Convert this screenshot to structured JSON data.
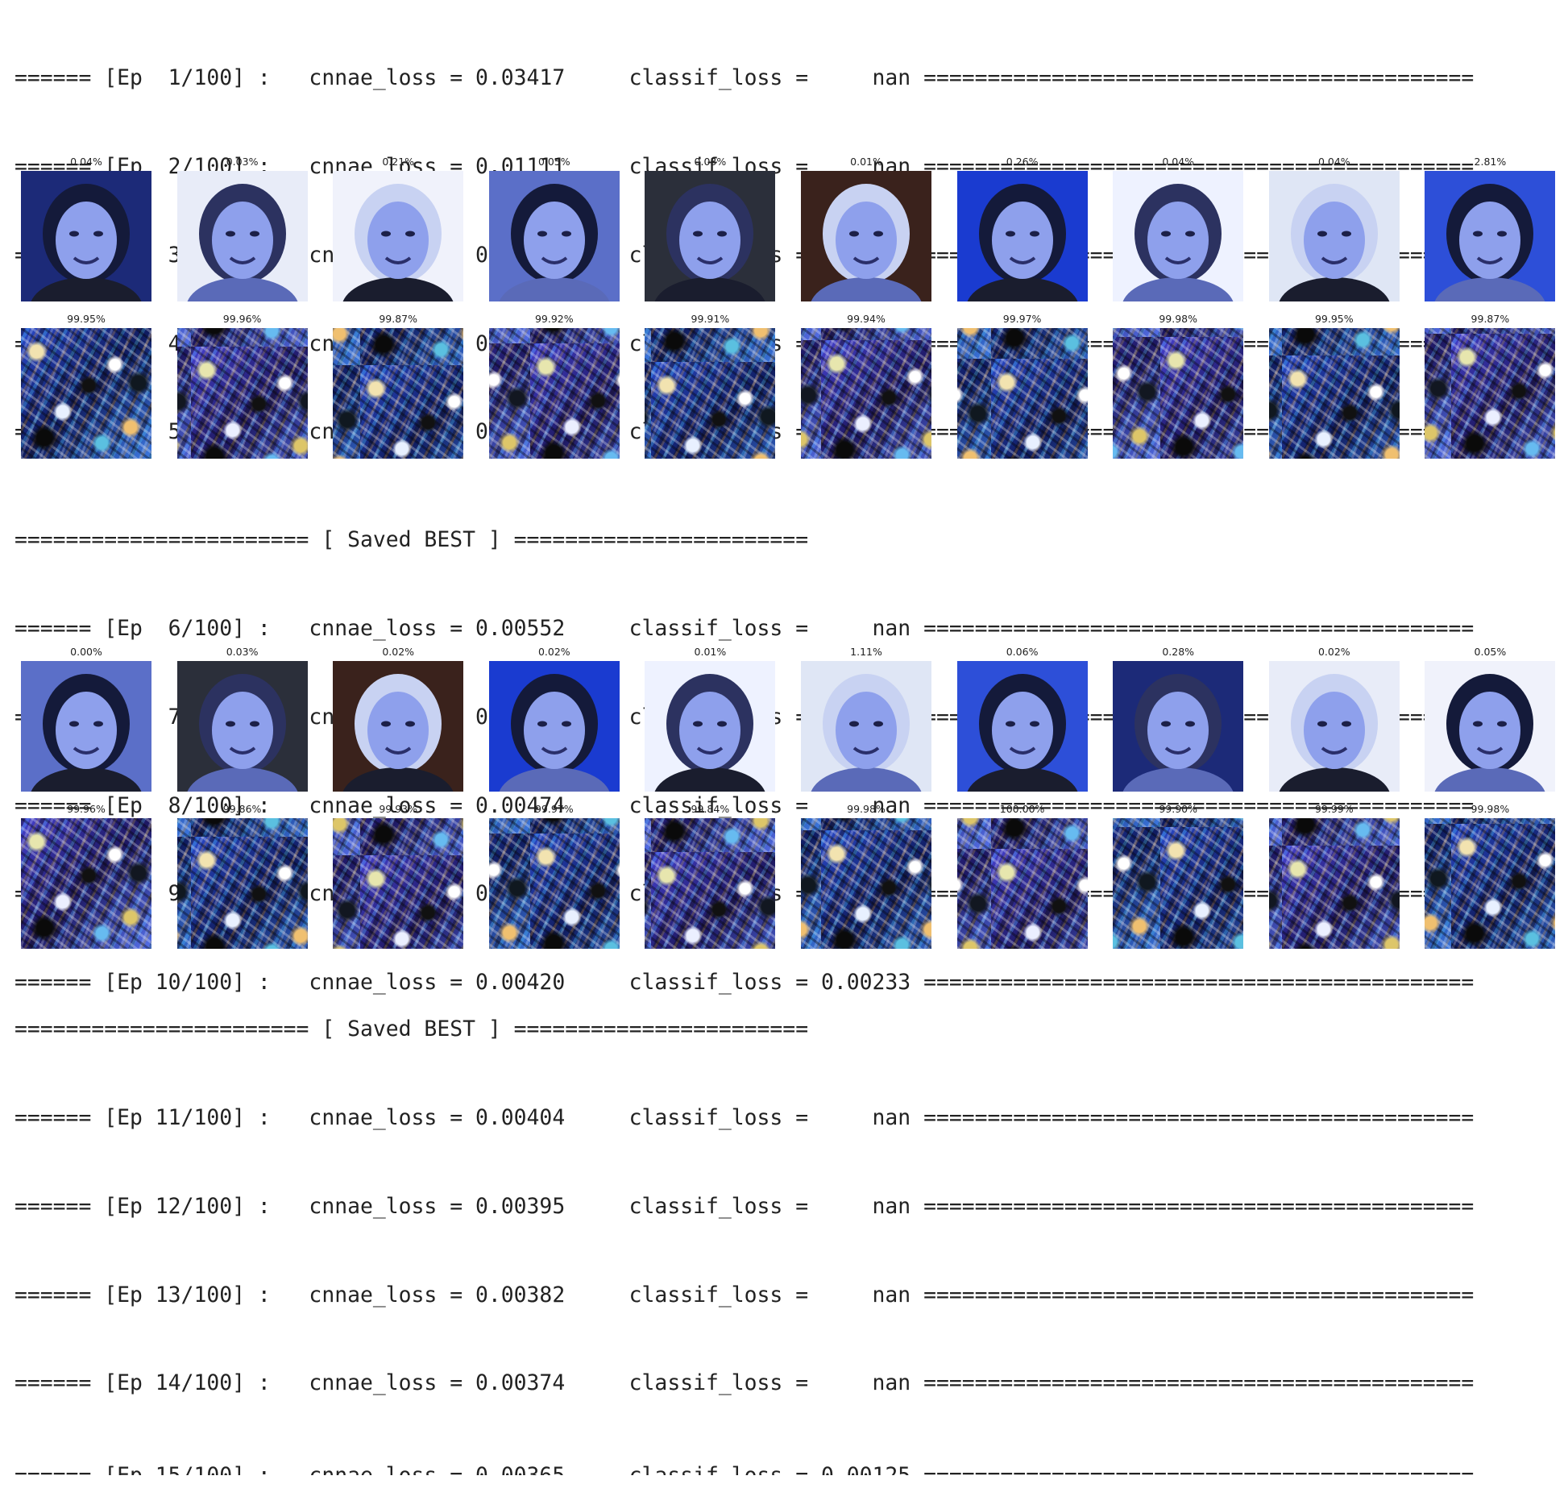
{
  "log_sections": [
    {
      "lines": [
        "====== [Ep  1/100] :   cnnae_loss = 0.03417     classif_loss =     nan ===========================================",
        "====== [Ep  2/100] :   cnnae_loss = 0.01111     classif_loss =     nan ===========================================",
        "====== [Ep  3/100] :   cnnae_loss = 0.00790     classif_loss =     nan ===========================================",
        "====== [Ep  4/100] :   cnnae_loss = 0.00672     classif_loss =     nan ===========================================",
        "====== [Ep  5/100] :   cnnae_loss = 0.00599     classif_loss = 0.04862 ==========================================="
      ]
    },
    {
      "lines": [
        "======================= [ Saved BEST ] =======================",
        "====== [Ep  6/100] :   cnnae_loss = 0.00552     classif_loss =     nan ===========================================",
        "====== [Ep  7/100] :   cnnae_loss = 0.00512     classif_loss =     nan ===========================================",
        "====== [Ep  8/100] :   cnnae_loss = 0.00474     classif_loss =     nan ===========================================",
        "====== [Ep  9/100] :   cnnae_loss = 0.00445     classif_loss =     nan ===========================================",
        "====== [Ep 10/100] :   cnnae_loss = 0.00420     classif_loss = 0.00233 ==========================================="
      ]
    },
    {
      "lines": [
        "======================= [ Saved BEST ] =======================",
        "====== [Ep 11/100] :   cnnae_loss = 0.00404     classif_loss =     nan ===========================================",
        "====== [Ep 12/100] :   cnnae_loss = 0.00395     classif_loss =     nan ===========================================",
        "====== [Ep 13/100] :   cnnae_loss = 0.00382     classif_loss =     nan ===========================================",
        "====== [Ep 14/100] :   cnnae_loss = 0.00374     classif_loss =     nan ===========================================",
        "====== [Ep 15/100] :   cnnae_loss = 0.00365     classif_loss = 0.00125 ==========================================="
      ]
    }
  ],
  "image_grids": [
    {
      "face_labels": [
        "0.04%",
        "0.03%",
        "0.21%",
        "0.05%",
        "0.03%",
        "0.01%",
        "0.26%",
        "0.04%",
        "0.04%",
        "2.81%"
      ],
      "noise_labels": [
        "99.95%",
        "99.96%",
        "99.87%",
        "99.92%",
        "99.91%",
        "99.94%",
        "99.97%",
        "99.98%",
        "99.95%",
        "99.87%"
      ]
    },
    {
      "face_labels": [
        "0.00%",
        "0.03%",
        "0.02%",
        "0.02%",
        "0.01%",
        "1.11%",
        "0.06%",
        "0.28%",
        "0.02%",
        "0.05%"
      ],
      "noise_labels": [
        "99.96%",
        "99.86%",
        "99.93%",
        "99.97%",
        "99.84%",
        "99.98%",
        "100.00%",
        "99.90%",
        "99.99%",
        "99.98%"
      ]
    }
  ],
  "colors": {
    "background": "#ffffff",
    "text": "#222222",
    "face_bg_palette": [
      "#1c2a78",
      "#e8ecf8",
      "#f0f2fb",
      "#5b6fc8",
      "#2b2f3a",
      "#3a221c",
      "#1a3bd0",
      "#eef2ff",
      "#dfe6f5",
      "#2d4fd8"
    ],
    "face_skin": "#8ea0ec"
  }
}
